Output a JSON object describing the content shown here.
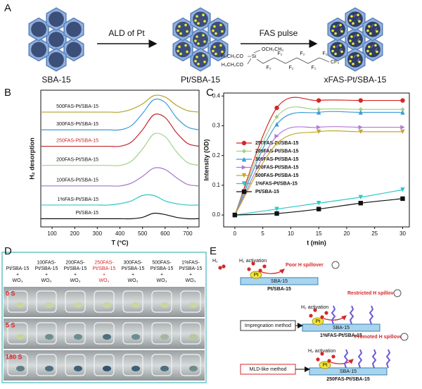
{
  "panel_a": {
    "label": "A",
    "items": [
      "SBA-15",
      "Pt/SBA-15",
      "xFAS-Pt/SBA-15"
    ],
    "arrows": [
      "ALD of Pt",
      "FAS pulse"
    ],
    "structure": [
      "OCH₂CH₃",
      "H₃CH₂CO",
      "Si",
      "H₃CH₂CO",
      "F₂",
      "F₂",
      "F₂",
      "F₂",
      "F₂",
      "F₂",
      "CF₃"
    ]
  },
  "chart_data": [
    {
      "type": "line",
      "panel_label": "B",
      "xlabel": "T (°C)",
      "ylabel": "H₂ desorption",
      "x": [
        50,
        100,
        150,
        200,
        250,
        300,
        350,
        400,
        450,
        500,
        550,
        600,
        650,
        700,
        750
      ],
      "xlim": [
        50,
        750
      ],
      "xticks": [
        100,
        200,
        300,
        400,
        500,
        600,
        700
      ],
      "ylim": [
        0,
        10
      ],
      "series": [
        {
          "name": "500FAS-Pt/SBA-15",
          "color": "#b5a22e",
          "label_color": "#111",
          "values": [
            8.4,
            8.4,
            8.4,
            8.4,
            8.4,
            8.4,
            8.4,
            8.4,
            8.6,
            9.0,
            9.6,
            9.5,
            8.9,
            8.5,
            8.4
          ]
        },
        {
          "name": "300FAS-Pt/SBA-15",
          "color": "#3c9ad6",
          "label_color": "#111",
          "values": [
            7.1,
            7.1,
            7.1,
            7.1,
            7.1,
            7.1,
            7.1,
            7.1,
            7.4,
            8.3,
            9.3,
            9.1,
            8.0,
            7.3,
            7.1
          ]
        },
        {
          "name": "250FAS-Pt/SBA-15",
          "color": "#c0282d",
          "label_color": "#c0282d",
          "values": [
            5.9,
            5.9,
            5.9,
            5.9,
            5.9,
            5.9,
            5.9,
            5.9,
            6.2,
            7.1,
            8.2,
            8.0,
            6.9,
            6.1,
            5.9
          ]
        },
        {
          "name": "200FAS-Pt/SBA-15",
          "color": "#a6d08a",
          "label_color": "#111",
          "values": [
            4.5,
            4.5,
            4.5,
            4.5,
            4.5,
            4.5,
            4.5,
            4.5,
            4.8,
            5.7,
            6.8,
            6.6,
            5.5,
            4.7,
            4.5
          ]
        },
        {
          "name": "100FAS-Pt/SBA-15",
          "color": "#a474c8",
          "label_color": "#111",
          "values": [
            3.0,
            3.0,
            3.0,
            3.0,
            3.0,
            3.0,
            3.0,
            3.0,
            3.2,
            3.7,
            4.3,
            4.2,
            3.6,
            3.1,
            3.0
          ]
        },
        {
          "name": "1%FAS-Pt/SBA-15",
          "color": "#2cc8c8",
          "label_color": "#111",
          "values": [
            1.6,
            1.6,
            1.6,
            1.6,
            1.6,
            1.6,
            1.6,
            1.7,
            1.9,
            2.3,
            2.3,
            1.9,
            1.7,
            1.6,
            1.6
          ]
        },
        {
          "name": "Pt/SBA-15",
          "color": "#111111",
          "label_color": "#111",
          "values": [
            0.6,
            0.6,
            0.6,
            0.6,
            0.6,
            0.6,
            0.6,
            0.6,
            0.6,
            0.7,
            1.0,
            0.9,
            0.7,
            0.6,
            0.6
          ]
        }
      ]
    },
    {
      "type": "line",
      "panel_label": "C",
      "xlabel": "t (min)",
      "ylabel": "Intensity (OD)",
      "x": [
        0,
        7.5,
        15,
        22.5,
        30
      ],
      "xlim": [
        -2,
        31.2
      ],
      "xticks": [
        0,
        5,
        10,
        15,
        20,
        25,
        30
      ],
      "ylim": [
        -0.04,
        0.41
      ],
      "yticks": [
        {
          "value": 0,
          "label": "0.0"
        },
        0.1,
        0.2,
        0.3,
        0.4
      ],
      "legend": "center-left",
      "series": [
        {
          "name": "250FAS-Pt/SBA-15",
          "color": "#d62728",
          "marker": "circle",
          "values": [
            0,
            0.36,
            0.385,
            0.385,
            0.385
          ]
        },
        {
          "name": "200FAS-Pt/SBA-15",
          "color": "#a6d08a",
          "marker": "diamond",
          "values": [
            0,
            0.33,
            0.355,
            0.355,
            0.355
          ]
        },
        {
          "name": "300FAS-Pt/SBA-15",
          "color": "#3c9ad6",
          "marker": "triangle-up",
          "values": [
            0,
            0.305,
            0.345,
            0.345,
            0.345
          ]
        },
        {
          "name": "100FAS-Pt/SBA-15",
          "color": "#b07ad6",
          "marker": "triangle-right",
          "values": [
            0,
            0.265,
            0.295,
            0.295,
            0.295
          ]
        },
        {
          "name": "500FAS-Pt/SBA-15",
          "color": "#c8a62e",
          "marker": "triangle-down",
          "values": [
            0,
            0.24,
            0.28,
            0.28,
            0.28
          ]
        },
        {
          "name": "1%FAS-Pt/SBA-15",
          "color": "#2cc8c8",
          "marker": "triangle-down",
          "values": [
            0,
            0.02,
            0.04,
            0.06,
            0.085
          ]
        },
        {
          "name": "Pt/SBA-15",
          "color": "#111111",
          "marker": "square",
          "values": [
            0,
            0.005,
            0.02,
            0.04,
            0.055
          ]
        }
      ]
    }
  ],
  "panel_d": {
    "label": "D",
    "columns": [
      {
        "lines": [
          "Pt/SBA-15",
          "+",
          "WO₃"
        ],
        "color": "#111"
      },
      {
        "lines": [
          "100FAS-",
          "Pt/SBA-15",
          "+",
          "WO₃"
        ],
        "color": "#111"
      },
      {
        "lines": [
          "200FAS-",
          "Pt/SBA-15",
          "+",
          "WO₃"
        ],
        "color": "#111"
      },
      {
        "lines": [
          "250FAS-",
          "Pt/SBA-15",
          "+",
          "WO₃"
        ],
        "color": "#d62728"
      },
      {
        "lines": [
          "300FAS-",
          "Pt/SBA-15",
          "+",
          "WO₃"
        ],
        "color": "#111"
      },
      {
        "lines": [
          "500FAS-",
          "Pt/SBA-15",
          "+",
          "WO₃"
        ],
        "color": "#111"
      },
      {
        "lines": [
          "1%FAS-",
          "Pt/SBA-15",
          "+",
          "WO₃"
        ],
        "color": "#111"
      }
    ],
    "times": [
      "0 S",
      "5 S",
      "180 S"
    ]
  },
  "panel_e": {
    "label": "E",
    "rows": [
      {
        "gas": "H₂",
        "activation": "H₂ activation",
        "metal": "Pt",
        "support": "SBA-15",
        "spillover": "Poor H spillover",
        "sample": "Pt/SBA-15"
      },
      {
        "method": "Impregnation method",
        "activation": "H₂ activation",
        "metal": "Pt",
        "support": "SBA-15",
        "spillover": "Restricted H spillover",
        "sample": "1%FAS-Pt/SBA-15"
      },
      {
        "method": "MLD-like  method",
        "activation": "H₂ activation",
        "metal": "Pt",
        "support": "SBA-15",
        "spillover": "Promoted H spillover",
        "sample": "250FAS-Pt/SBA-15"
      }
    ]
  }
}
